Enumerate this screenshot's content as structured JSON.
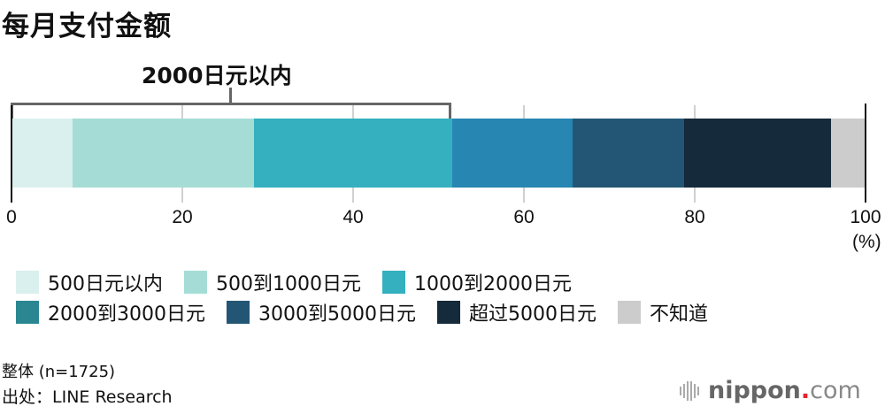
{
  "header": {
    "title": "每月支付金额"
  },
  "bracket": {
    "label": "2000日元以内",
    "start_pct": 0,
    "end_pct": 51.6
  },
  "axis": {
    "ticks": [
      "0",
      "20",
      "40",
      "60",
      "80",
      "100"
    ],
    "unit": "(%)"
  },
  "legend": {
    "row1": [
      {
        "label": "500日元以内",
        "color": "#d9f0ee"
      },
      {
        "label": "500到1000日元",
        "color": "#a5ddd6"
      },
      {
        "label": "1000到2000日元",
        "color": "#34b0bf"
      }
    ],
    "row2": [
      {
        "label": "2000到3000日元",
        "color": "#2a8791"
      },
      {
        "label": "3000到5000日元",
        "color": "#235674"
      },
      {
        "label": "超过5000日元",
        "color": "#152a3a"
      },
      {
        "label": "不知道",
        "color": "#cccccc"
      }
    ]
  },
  "footer": {
    "note": "整体 (n=1725)",
    "source": "出处：LINE Research",
    "logo_name": "nippon",
    "logo_dot": ".",
    "logo_tld": "com"
  },
  "chart_data": {
    "type": "bar",
    "orientation": "horizontal-stacked",
    "title": "每月支付金额",
    "categories": [
      "整体 (n=1725)"
    ],
    "series": [
      {
        "name": "500日元以内",
        "values": [
          7.1
        ],
        "color": "#d9f0ee"
      },
      {
        "name": "500到1000日元",
        "values": [
          21.3
        ],
        "color": "#a5ddd6"
      },
      {
        "name": "1000到2000日元",
        "values": [
          23.2
        ],
        "color": "#34b0bf"
      },
      {
        "name": "2000到3000日元",
        "values": [
          14.1
        ],
        "color": "#2786b2"
      },
      {
        "name": "3000到5000日元",
        "values": [
          13.1
        ],
        "color": "#235674"
      },
      {
        "name": "超过5000日元",
        "values": [
          17.2
        ],
        "color": "#152a3a"
      },
      {
        "name": "不知道",
        "values": [
          4.0
        ],
        "color": "#cccccc"
      }
    ],
    "annotations": [
      {
        "text": "2000日元以内",
        "range": [
          0,
          51.6
        ]
      }
    ],
    "xlabel": "(%)",
    "xlim": [
      0,
      100
    ],
    "xticks": [
      0,
      20,
      40,
      60,
      80,
      100
    ],
    "grid": true,
    "legend_position": "bottom"
  }
}
